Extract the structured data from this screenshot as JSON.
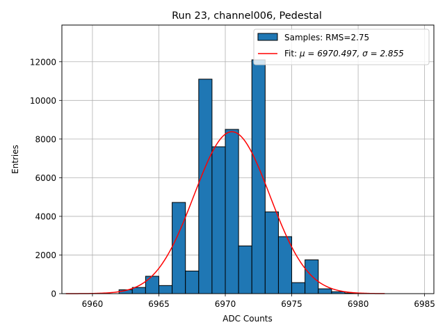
{
  "chart_data": {
    "type": "bar",
    "title": "Run 23, channel006, Pedestal",
    "xlabel": "ADC Counts",
    "ylabel": "Entries",
    "xlim": [
      6957.7,
      6985.7
    ],
    "ylim": [
      0,
      13900
    ],
    "xticks": [
      6960,
      6965,
      6970,
      6975,
      6980,
      6985
    ],
    "yticks": [
      0,
      2000,
      4000,
      6000,
      8000,
      10000,
      12000
    ],
    "grid": true,
    "legend_position": "top-right",
    "bin_width": 1,
    "histogram": {
      "name": "Samples: RMS=2.75",
      "color": "#1f77b4",
      "bins": [
        {
          "left": 6962,
          "count": 200
        },
        {
          "left": 6963,
          "count": 320
        },
        {
          "left": 6964,
          "count": 900
        },
        {
          "left": 6965,
          "count": 420
        },
        {
          "left": 6966,
          "count": 4720
        },
        {
          "left": 6967,
          "count": 1170
        },
        {
          "left": 6968,
          "count": 11100
        },
        {
          "left": 6969,
          "count": 7600
        },
        {
          "left": 6970,
          "count": 8500
        },
        {
          "left": 6971,
          "count": 2470
        },
        {
          "left": 6972,
          "count": 12100
        },
        {
          "left": 6973,
          "count": 4230
        },
        {
          "left": 6974,
          "count": 2950
        },
        {
          "left": 6975,
          "count": 570
        },
        {
          "left": 6976,
          "count": 1750
        },
        {
          "left": 6977,
          "count": 250
        },
        {
          "left": 6978,
          "count": 100
        },
        {
          "left": 6979,
          "count": 30
        }
      ]
    },
    "fit": {
      "name": "Fit: μ = 6970.497, σ = 2.855",
      "legend_prefix": "Fit: ",
      "mu_label": "μ = 6970.497, ",
      "sigma_label": "σ = 2.855",
      "color": "#ff0000",
      "mu": 6970.497,
      "sigma": 2.855,
      "amplitude": 8380,
      "x_range": [
        6958,
        6982
      ]
    }
  }
}
